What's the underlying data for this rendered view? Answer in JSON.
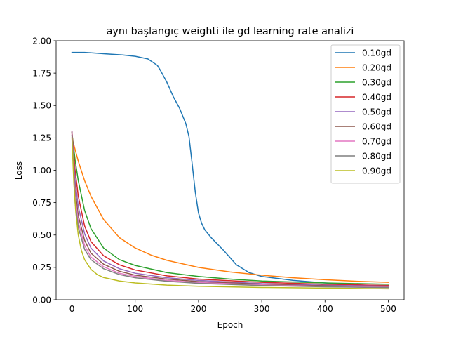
{
  "chart_data": {
    "type": "line",
    "title": "aynı başlangıç weighti ile gd learning rate analizi",
    "xlabel": "Epoch",
    "ylabel": "Loss",
    "xlim": [
      -25,
      525
    ],
    "ylim": [
      0.0,
      2.0
    ],
    "xticks": [
      0,
      100,
      200,
      300,
      400,
      500
    ],
    "yticks": [
      0.0,
      0.25,
      0.5,
      0.75,
      1.0,
      1.25,
      1.5,
      1.75,
      2.0
    ],
    "grid": false,
    "legend_position": "top-right",
    "series": [
      {
        "name": "0.10gd",
        "color": "#1f77b4",
        "x": [
          0,
          20,
          50,
          80,
          100,
          120,
          135,
          140,
          150,
          160,
          170,
          180,
          185,
          190,
          195,
          200,
          205,
          210,
          220,
          240,
          260,
          280,
          300,
          350,
          400,
          450,
          500
        ],
        "y": [
          1.91,
          1.91,
          1.9,
          1.89,
          1.88,
          1.86,
          1.81,
          1.77,
          1.68,
          1.57,
          1.48,
          1.36,
          1.26,
          1.05,
          0.83,
          0.67,
          0.59,
          0.54,
          0.48,
          0.38,
          0.27,
          0.21,
          0.18,
          0.15,
          0.13,
          0.115,
          0.105
        ]
      },
      {
        "name": "0.20gd",
        "color": "#ff7f0e",
        "x": [
          0,
          10,
          20,
          30,
          50,
          75,
          100,
          125,
          150,
          200,
          250,
          300,
          350,
          400,
          450,
          500
        ],
        "y": [
          1.25,
          1.07,
          0.92,
          0.8,
          0.62,
          0.48,
          0.4,
          0.345,
          0.305,
          0.25,
          0.215,
          0.19,
          0.17,
          0.155,
          0.143,
          0.135
        ]
      },
      {
        "name": "0.30gd",
        "color": "#2ca02c",
        "x": [
          0,
          5,
          10,
          20,
          30,
          50,
          75,
          100,
          150,
          200,
          250,
          300,
          400,
          500
        ],
        "y": [
          1.29,
          1.08,
          0.92,
          0.69,
          0.55,
          0.4,
          0.31,
          0.265,
          0.21,
          0.18,
          0.16,
          0.145,
          0.13,
          0.12
        ]
      },
      {
        "name": "0.40gd",
        "color": "#d62728",
        "x": [
          0,
          5,
          10,
          20,
          30,
          50,
          75,
          100,
          150,
          200,
          300,
          400,
          500
        ],
        "y": [
          1.3,
          1.0,
          0.8,
          0.57,
          0.45,
          0.34,
          0.27,
          0.23,
          0.185,
          0.16,
          0.135,
          0.12,
          0.11
        ]
      },
      {
        "name": "0.50gd",
        "color": "#9467bd",
        "x": [
          0,
          5,
          10,
          20,
          30,
          50,
          75,
          100,
          150,
          200,
          300,
          400,
          500
        ],
        "y": [
          1.3,
          0.92,
          0.72,
          0.51,
          0.4,
          0.3,
          0.24,
          0.205,
          0.17,
          0.15,
          0.125,
          0.112,
          0.105
        ]
      },
      {
        "name": "0.60gd",
        "color": "#8c564b",
        "x": [
          0,
          5,
          10,
          20,
          30,
          50,
          75,
          100,
          150,
          200,
          300,
          400,
          500
        ],
        "y": [
          1.29,
          0.85,
          0.65,
          0.46,
          0.36,
          0.275,
          0.22,
          0.19,
          0.16,
          0.14,
          0.12,
          0.107,
          0.1
        ]
      },
      {
        "name": "0.70gd",
        "color": "#e377c2",
        "x": [
          0,
          5,
          10,
          20,
          30,
          50,
          75,
          100,
          150,
          200,
          300,
          400,
          500
        ],
        "y": [
          1.28,
          0.8,
          0.6,
          0.42,
          0.33,
          0.255,
          0.205,
          0.18,
          0.15,
          0.133,
          0.115,
          0.103,
          0.097
        ]
      },
      {
        "name": "0.80gd",
        "color": "#7f7f7f",
        "x": [
          0,
          5,
          10,
          20,
          30,
          50,
          75,
          100,
          150,
          200,
          300,
          400,
          500
        ],
        "y": [
          1.27,
          0.75,
          0.56,
          0.39,
          0.31,
          0.24,
          0.195,
          0.17,
          0.143,
          0.127,
          0.11,
          0.1,
          0.094
        ]
      },
      {
        "name": "0.90gd",
        "color": "#bcbd22",
        "x": [
          0,
          3,
          6,
          10,
          15,
          20,
          30,
          40,
          50,
          75,
          100,
          150,
          200,
          300,
          400,
          500
        ],
        "y": [
          1.25,
          0.9,
          0.68,
          0.5,
          0.38,
          0.31,
          0.235,
          0.195,
          0.172,
          0.145,
          0.13,
          0.113,
          0.104,
          0.095,
          0.09,
          0.085
        ]
      }
    ]
  }
}
